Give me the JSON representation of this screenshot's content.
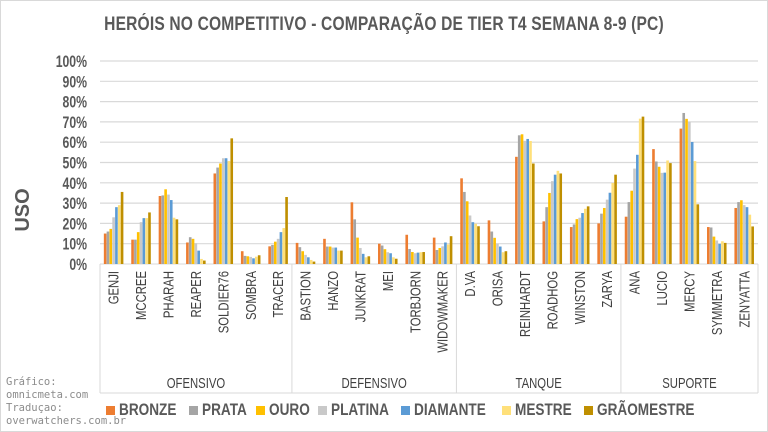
{
  "chart_data": {
    "type": "bar",
    "title": "HERÓIS NO COMPETITIVO - COMPARAÇÃO DE TIER T4 SEMANA 8-9 (PC)",
    "xlabel": "",
    "ylabel": "USO",
    "ylim": [
      0,
      100
    ],
    "yticks": [
      "0%",
      "10%",
      "20%",
      "30%",
      "40%",
      "50%",
      "60%",
      "70%",
      "80%",
      "90%",
      "100%"
    ],
    "grid": true,
    "legend_position": "bottom",
    "groups": [
      {
        "label": "OFENSIVO",
        "count": 7
      },
      {
        "label": "DEFENSIVO",
        "count": 6
      },
      {
        "label": "TANQUE",
        "count": 6
      },
      {
        "label": "SUPORTE",
        "count": 5
      }
    ],
    "categories": [
      "GENJI",
      "MCCREE",
      "PHARAH",
      "REAPER",
      "SOLDIER76",
      "SOMBRA",
      "TRACER",
      "BASTION",
      "HANZO",
      "JUNKRAT",
      "MEI",
      "TORBJORN",
      "WIDOWMAKER",
      "D.VA",
      "ORISA",
      "REINHARDT",
      "ROADHOG",
      "WINSTON",
      "ZARYA",
      "ANA",
      "LUCIO",
      "MERCY",
      "SYMMETRA",
      "ZENYATTA"
    ],
    "series": [
      {
        "name": "BRONZE",
        "color": "#ED7D31",
        "values": [
          15,
          12,
          33.5,
          10.6,
          44.6,
          6.3,
          8.7,
          10.4,
          12.4,
          30.4,
          10,
          14.4,
          13,
          42.2,
          21.5,
          52.8,
          21,
          18.2,
          20,
          23.3,
          56.6,
          66.7,
          18.2,
          27.6
        ]
      },
      {
        "name": "PRATA",
        "color": "#A5A5A5",
        "values": [
          16,
          12,
          33.8,
          13.2,
          47.5,
          4,
          9.4,
          8.3,
          8.6,
          22,
          9.1,
          7.4,
          6.9,
          35.5,
          16,
          63.4,
          28,
          19.5,
          24.8,
          30.5,
          50.5,
          74.4,
          18,
          30.5
        ]
      },
      {
        "name": "OURO",
        "color": "#FFC000",
        "values": [
          17.3,
          15.7,
          36.8,
          12.4,
          49.5,
          3.8,
          11,
          6.3,
          8.6,
          13,
          7.3,
          5.9,
          7.9,
          30.9,
          12.9,
          63.9,
          35,
          22.1,
          27.6,
          36.1,
          47.9,
          71.5,
          13.5,
          31.4
        ]
      },
      {
        "name": "PLATINA",
        "color": "#C9C9C9",
        "values": [
          23,
          20.6,
          34.2,
          10.2,
          52.1,
          3.5,
          12.4,
          4.5,
          8.1,
          7.9,
          5.8,
          5.3,
          8.7,
          23.9,
          10,
          60.7,
          40.8,
          22.8,
          31.7,
          47,
          44.9,
          70,
          11.6,
          29
        ]
      },
      {
        "name": "DIAMANTE",
        "color": "#5B9BD5",
        "values": [
          28,
          22.6,
          31.5,
          6.6,
          52.1,
          2.8,
          15.7,
          3.3,
          8.1,
          5,
          5.3,
          5.6,
          10.6,
          20.6,
          8.6,
          61.6,
          44,
          25.1,
          35.1,
          53.8,
          45,
          60.1,
          9.9,
          28
        ]
      },
      {
        "name": "MESTRE",
        "color": "#FFE07A",
        "values": [
          29,
          22.6,
          22.8,
          2.5,
          50.7,
          3.6,
          17.7,
          2,
          6.6,
          3.3,
          3.3,
          5.8,
          9.6,
          19.8,
          5.8,
          60.6,
          45.9,
          27.2,
          39.9,
          71.6,
          51,
          50.7,
          11.2,
          24.3
        ]
      },
      {
        "name": "GRÃOMESTRE",
        "color": "#BF8F00",
        "values": [
          35.5,
          25.4,
          22,
          1.7,
          61.9,
          4.3,
          33,
          1.2,
          6.6,
          3.8,
          2.6,
          5.9,
          13.7,
          18.6,
          6.3,
          49.5,
          44.6,
          28.4,
          44,
          72.6,
          49.7,
          29.4,
          10.4,
          18.5
        ]
      }
    ]
  },
  "credits": [
    "Gráfico:",
    "omnicmeta.com",
    "Traduçao:",
    "overwatchers.com.br"
  ]
}
